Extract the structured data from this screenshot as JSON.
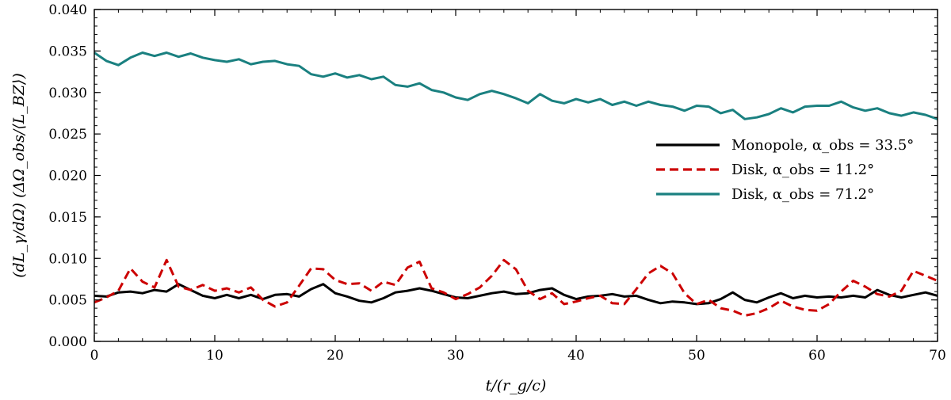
{
  "chart_data": {
    "type": "line",
    "xlabel": "t/(r_g/c)",
    "ylabel": "(dL_γ/dΩ) (ΔΩ_obs/⟨L_BZ⟩)",
    "xlim": [
      0,
      70
    ],
    "ylim": [
      0,
      0.04
    ],
    "x_ticks": [
      "0",
      "10",
      "20",
      "30",
      "40",
      "50",
      "60",
      "70"
    ],
    "y_ticks": [
      "0.000",
      "0.005",
      "0.010",
      "0.015",
      "0.020",
      "0.025",
      "0.030",
      "0.035",
      "0.040"
    ],
    "grid": false,
    "legend_placement": "center-right",
    "x": [
      0,
      1,
      2,
      3,
      4,
      5,
      6,
      7,
      8,
      9,
      10,
      11,
      12,
      13,
      14,
      15,
      16,
      17,
      18,
      19,
      20,
      21,
      22,
      23,
      24,
      25,
      26,
      27,
      28,
      29,
      30,
      31,
      32,
      33,
      34,
      35,
      36,
      37,
      38,
      39,
      40,
      41,
      42,
      43,
      44,
      45,
      46,
      47,
      48,
      49,
      50,
      51,
      52,
      53,
      54,
      55,
      56,
      57,
      58,
      59,
      60,
      61,
      62,
      63,
      64,
      65,
      66,
      67,
      68,
      69,
      70
    ],
    "series": [
      {
        "name": "Monopole, α_obs = 33.5°",
        "color": "#000000",
        "dash": "solid",
        "values": [
          0.0055,
          0.0054,
          0.0059,
          0.006,
          0.0058,
          0.0062,
          0.006,
          0.0069,
          0.0062,
          0.0055,
          0.0052,
          0.0056,
          0.0052,
          0.0056,
          0.0051,
          0.0056,
          0.0057,
          0.0054,
          0.0063,
          0.0069,
          0.0058,
          0.0054,
          0.0049,
          0.0047,
          0.0052,
          0.0059,
          0.0061,
          0.0064,
          0.0061,
          0.0057,
          0.0053,
          0.0052,
          0.0055,
          0.0058,
          0.006,
          0.0057,
          0.0058,
          0.0062,
          0.0064,
          0.0056,
          0.0051,
          0.0054,
          0.0055,
          0.0057,
          0.0054,
          0.0055,
          0.005,
          0.0046,
          0.0048,
          0.0047,
          0.0045,
          0.0046,
          0.0051,
          0.0059,
          0.005,
          0.0047,
          0.0053,
          0.0058,
          0.0052,
          0.0055,
          0.0053,
          0.0054,
          0.0053,
          0.0055,
          0.0053,
          0.0062,
          0.0056,
          0.0053,
          0.0056,
          0.0059,
          0.0055
        ]
      },
      {
        "name": "Disk, α_obs = 11.2°",
        "color": "#cc0000",
        "dash": "dashed",
        "values": [
          0.0047,
          0.0053,
          0.0061,
          0.0088,
          0.0072,
          0.0065,
          0.0098,
          0.0066,
          0.0062,
          0.0068,
          0.0061,
          0.0064,
          0.0059,
          0.0065,
          0.005,
          0.0042,
          0.0047,
          0.0067,
          0.0088,
          0.0087,
          0.0074,
          0.0069,
          0.007,
          0.0061,
          0.0072,
          0.0068,
          0.0089,
          0.0096,
          0.0064,
          0.0059,
          0.0051,
          0.0057,
          0.0065,
          0.0079,
          0.0098,
          0.0087,
          0.0061,
          0.0051,
          0.0058,
          0.0045,
          0.0048,
          0.0052,
          0.0055,
          0.0046,
          0.0045,
          0.0063,
          0.0082,
          0.0091,
          0.0082,
          0.0058,
          0.0045,
          0.005,
          0.004,
          0.0037,
          0.0031,
          0.0034,
          0.004,
          0.0049,
          0.0042,
          0.0038,
          0.0037,
          0.0045,
          0.006,
          0.0073,
          0.0066,
          0.0057,
          0.0054,
          0.0061,
          0.0085,
          0.0079,
          0.0073
        ]
      },
      {
        "name": "Disk, α_obs = 71.2°",
        "color": "#1a8080",
        "dash": "solid",
        "values": [
          0.0348,
          0.0338,
          0.0333,
          0.0342,
          0.0348,
          0.0344,
          0.0348,
          0.0343,
          0.0347,
          0.0342,
          0.0339,
          0.0337,
          0.034,
          0.0334,
          0.0337,
          0.0338,
          0.0334,
          0.0332,
          0.0322,
          0.0319,
          0.0323,
          0.0318,
          0.0321,
          0.0316,
          0.0319,
          0.0309,
          0.0307,
          0.0311,
          0.0303,
          0.03,
          0.0294,
          0.0291,
          0.0298,
          0.0302,
          0.0298,
          0.0293,
          0.0287,
          0.0298,
          0.029,
          0.0287,
          0.0292,
          0.0288,
          0.0292,
          0.0285,
          0.0289,
          0.0284,
          0.0289,
          0.0285,
          0.0283,
          0.0278,
          0.0284,
          0.0283,
          0.0275,
          0.0279,
          0.0268,
          0.027,
          0.0274,
          0.0281,
          0.0276,
          0.0283,
          0.0284,
          0.0284,
          0.0289,
          0.0282,
          0.0278,
          0.0281,
          0.0275,
          0.0272,
          0.0276,
          0.0273,
          0.0268
        ]
      }
    ],
    "legend": [
      {
        "label": "Monopole, α_obs = 33.5°"
      },
      {
        "label": "Disk, α_obs = 11.2°"
      },
      {
        "label": "Disk, α_obs = 71.2°"
      }
    ]
  }
}
